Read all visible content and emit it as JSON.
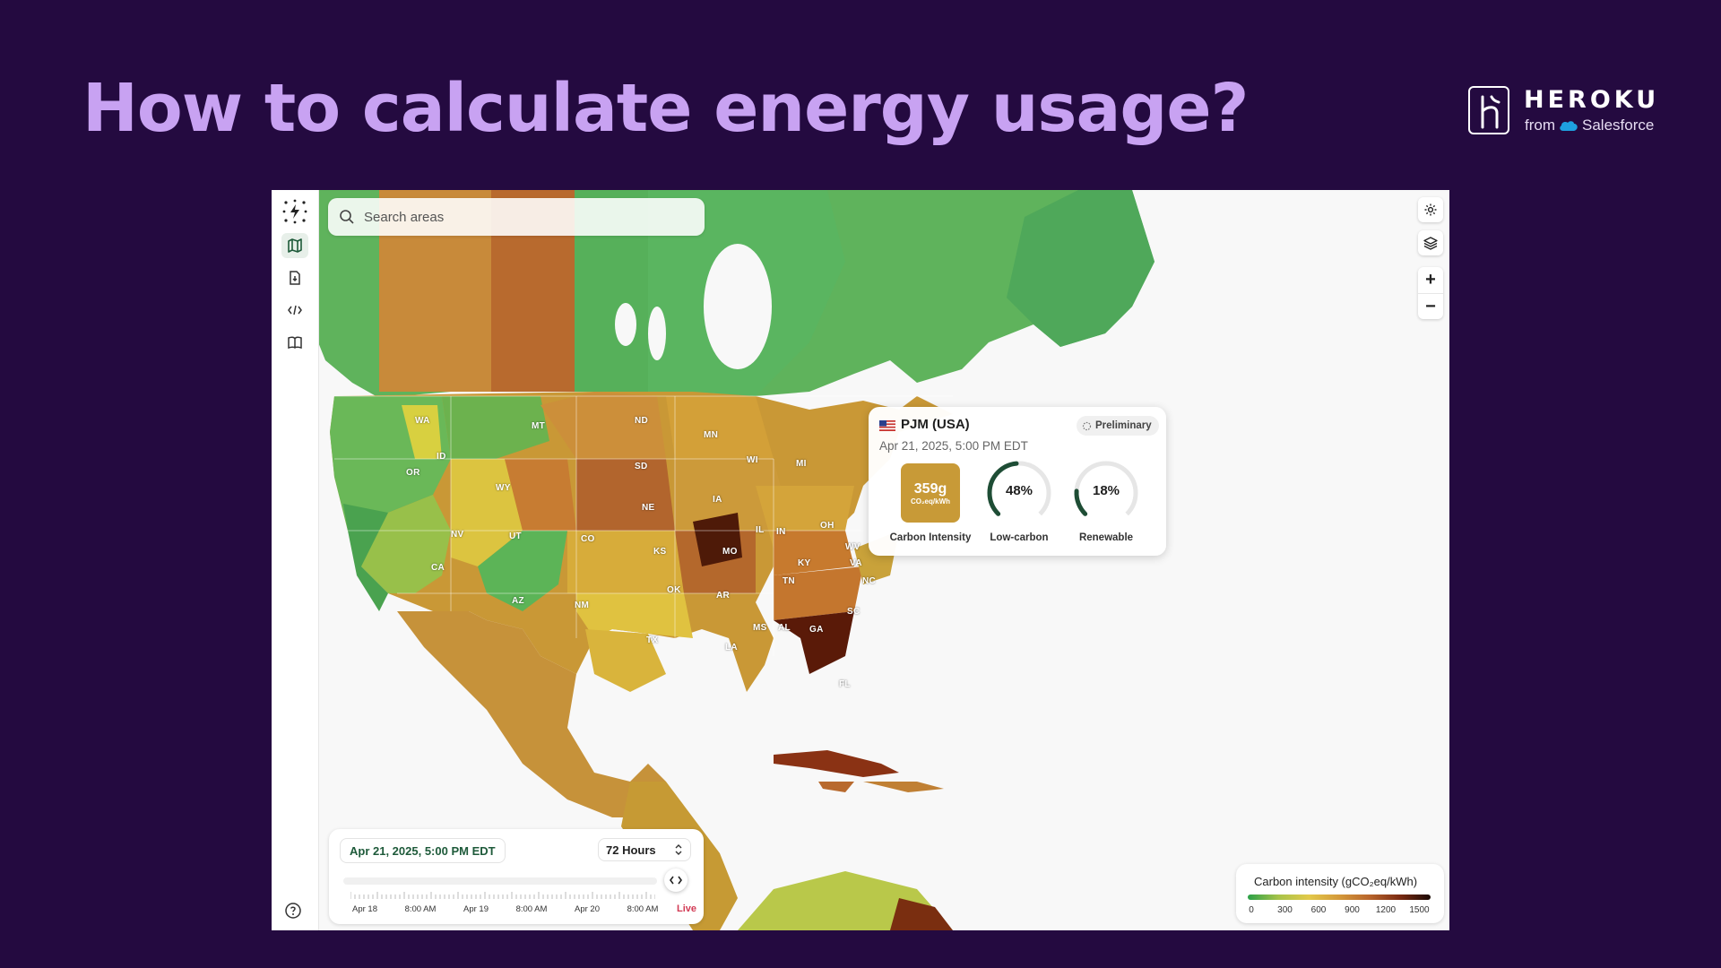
{
  "slide": {
    "title": "How to calculate energy usage?",
    "logo_word": "HEROKU",
    "logo_from": "from",
    "logo_brand": "Salesforce"
  },
  "sidebar": {
    "items": [
      {
        "icon": "map-icon",
        "active": true
      },
      {
        "icon": "download-file-icon",
        "active": false
      },
      {
        "icon": "code-icon",
        "active": false
      },
      {
        "icon": "book-icon",
        "active": false
      }
    ],
    "help_icon": "help-circle-icon"
  },
  "search": {
    "placeholder": "Search areas"
  },
  "map_labels": [
    "WA",
    "MT",
    "ND",
    "MN",
    "OR",
    "ID",
    "SD",
    "WI",
    "MI",
    "WY",
    "IA",
    "NE",
    "NV",
    "UT",
    "CO",
    "KS",
    "MO",
    "IL",
    "IN",
    "OH",
    "WV",
    "KY",
    "VA",
    "CA",
    "OK",
    "AR",
    "TN",
    "NC",
    "AZ",
    "NM",
    "SC",
    "MS",
    "AL",
    "GA",
    "TX",
    "LA",
    "FL"
  ],
  "tooltip": {
    "zone": "PJM (USA)",
    "badge": "Preliminary",
    "date": "Apr 21, 2025, 5:00 PM EDT",
    "carbon_value": "359g",
    "carbon_unit": "CO₂eq/kWh",
    "carbon_label": "Carbon Intensity",
    "low_carbon_value": "48%",
    "low_carbon_fraction": 0.48,
    "low_carbon_label": "Low-carbon",
    "renewable_value": "18%",
    "renewable_fraction": 0.18,
    "renewable_label": "Renewable"
  },
  "timeline": {
    "date": "Apr 21, 2025, 5:00 PM EDT",
    "range": "72 Hours",
    "ticks": [
      "Apr 18",
      "8:00 AM",
      "Apr 19",
      "8:00 AM",
      "Apr 20",
      "8:00 AM"
    ],
    "live": "Live"
  },
  "legend": {
    "title": "Carbon intensity (gCO₂eq/kWh)",
    "ticks": [
      "0",
      "300",
      "600",
      "900",
      "1200",
      "1500"
    ]
  },
  "colors": {
    "background": "#240a40",
    "title": "#c8a2f2",
    "accent_green": "#1e5a3a",
    "live": "#d23a54"
  }
}
